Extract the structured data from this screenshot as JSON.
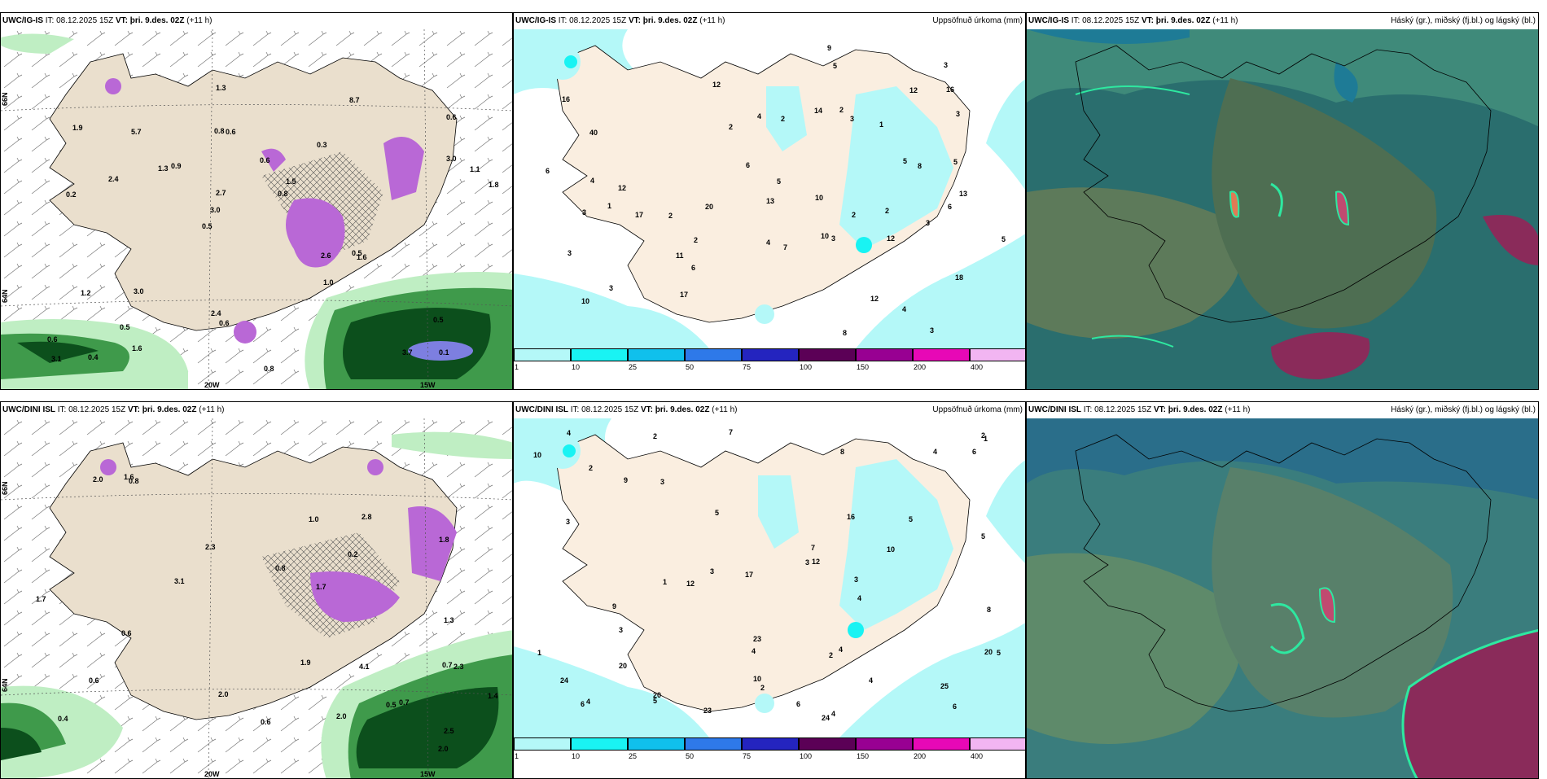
{
  "panels": [
    {
      "model": "UWC/IG-IS",
      "it": "IT: 08.12.2025 15Z",
      "vt_label": "VT:",
      "vt": "þri. 9.des. 02Z",
      "lead": "(+11 h)",
      "right": ""
    },
    {
      "model": "UWC/IG-IS",
      "it": "IT: 08.12.2025 15Z",
      "vt_label": "VT:",
      "vt": "þri. 9.des. 02Z",
      "lead": "(+11 h)",
      "right": "Uppsöfnuð úrkoma (mm)"
    },
    {
      "model": "UWC/IG-IS",
      "it": "IT: 08.12.2025 15Z",
      "vt_label": "VT:",
      "vt": "þri. 9.des. 02Z",
      "lead": "(+11 h)",
      "right": "Háský (gr.), miðský (fj.bl.) og lágský (bl.)"
    },
    {
      "model": "UWC/DINI ISL",
      "it": "IT: 08.12.2025 15Z",
      "vt_label": "VT:",
      "vt": "þri. 9.des. 02Z",
      "lead": "(+11 h)",
      "right": ""
    },
    {
      "model": "UWC/DINI ISL",
      "it": "IT: 08.12.2025 15Z",
      "vt_label": "VT:",
      "vt": "þri. 9.des. 02Z",
      "lead": "(+11 h)",
      "right": "Uppsöfnuð úrkoma (mm)"
    },
    {
      "model": "UWC/DINI ISL",
      "it": "IT: 08.12.2025 15Z",
      "vt_label": "VT:",
      "vt": "þri. 9.des. 02Z",
      "lead": "(+11 h)",
      "right": "Háský (gr.), miðský (fj.bl.) og lágský (bl.)"
    }
  ],
  "colorbar": {
    "ticks": [
      "1",
      "10",
      "25",
      "50",
      "75",
      "100",
      "150",
      "200",
      "400"
    ],
    "colors": [
      "#b4f8f8",
      "#19f3f3",
      "#10c0ec",
      "#2e79e9",
      "#2424bf",
      "#5b0056",
      "#980092",
      "#e708b6",
      "#f2b5f2"
    ]
  },
  "grid_labels": {
    "lat_top": "66N",
    "lat_mid": "64N",
    "lon_a": "20W",
    "lon_b": "15W"
  },
  "values": {
    "p1": [
      "0.1",
      "0.2",
      "0.6",
      "0.5",
      "0.3",
      "0.4",
      "0.8",
      "0.6",
      "1.2",
      "0.9",
      "0.6",
      "0.5",
      "0.6",
      "1.5",
      "1.6",
      "1.9",
      "1.3",
      "1.8",
      "2.6",
      "3.0",
      "3.0",
      "2.4",
      "2.7",
      "5.7",
      "8.7",
      "3.0",
      "3.7",
      "0.5",
      "0.5",
      "0.8",
      "1.3",
      "2.4",
      "1.0",
      "1.6",
      "1.1",
      "0.8",
      "3.1",
      "0.6"
    ],
    "p2": [
      "3",
      "1",
      "10",
      "16",
      "18",
      "40",
      "3",
      "2",
      "1",
      "4",
      "3",
      "4",
      "6",
      "12",
      "10",
      "3",
      "2",
      "5",
      "6",
      "10",
      "3",
      "2",
      "5",
      "5",
      "13",
      "4",
      "17",
      "13",
      "6",
      "16",
      "3",
      "3",
      "11",
      "2",
      "2",
      "3",
      "6",
      "12",
      "12",
      "8",
      "2",
      "7",
      "17",
      "9",
      "20",
      "12",
      "3",
      "5",
      "14",
      "4",
      "2",
      "5",
      "12",
      "8"
    ],
    "p4": [
      "0.6",
      "1.7",
      "0.7",
      "1.4",
      "1.0",
      "0.7",
      "0.8",
      "0.2",
      "2.3",
      "0.4",
      "0.8",
      "1.9",
      "1.3",
      "0.6",
      "2.0",
      "2.0",
      "2.0",
      "1.8",
      "2.5",
      "4.1",
      "0.6",
      "2.8",
      "3.1",
      "2.3",
      "1.6",
      "1.7",
      "0.5",
      "2.0"
    ],
    "p5": [
      "23",
      "24",
      "20",
      "4",
      "2",
      "2",
      "1",
      "6",
      "7",
      "5",
      "4",
      "2",
      "3",
      "4",
      "8",
      "3",
      "3",
      "5",
      "12",
      "10",
      "2",
      "1",
      "7",
      "6",
      "5",
      "9",
      "1",
      "3",
      "4",
      "4",
      "17",
      "4",
      "23",
      "6",
      "20",
      "3",
      "20",
      "24",
      "16",
      "25",
      "12",
      "10",
      "5",
      "4",
      "3",
      "4",
      "8",
      "6",
      "9",
      "10",
      "2",
      "5"
    ]
  }
}
